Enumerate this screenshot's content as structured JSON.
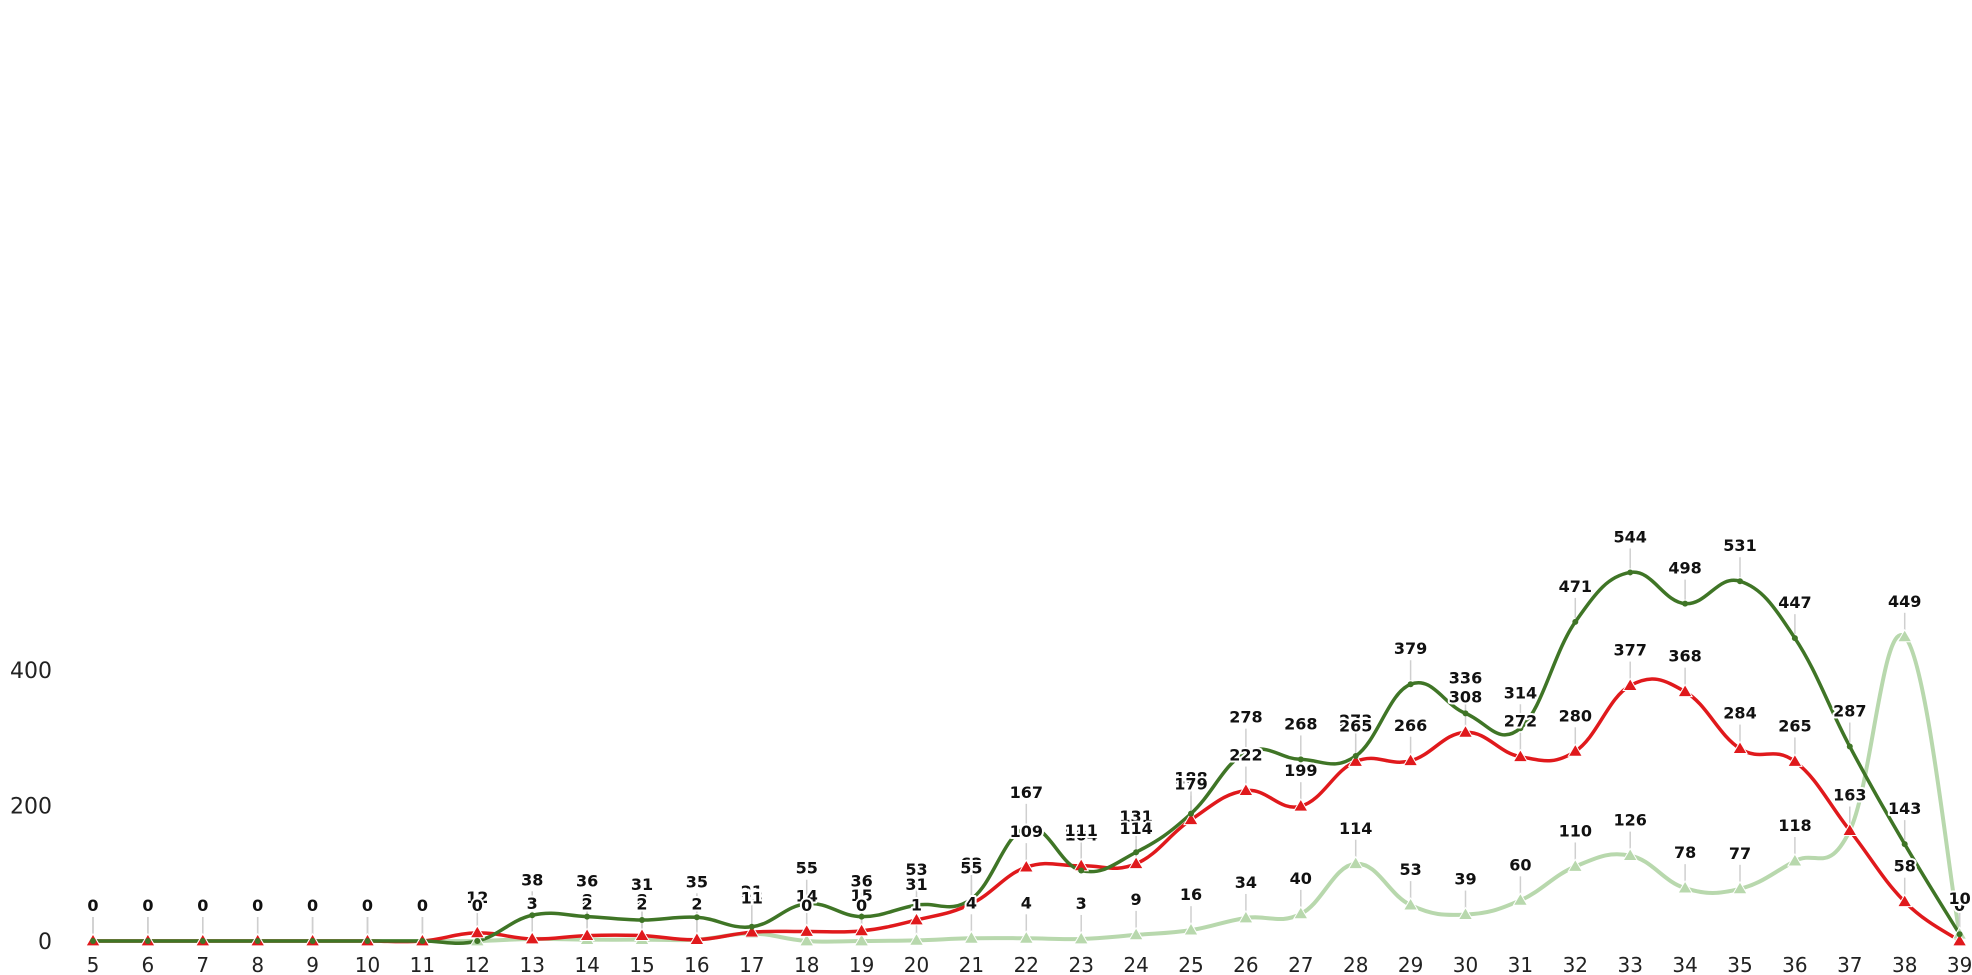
{
  "chart_data": {
    "type": "line",
    "smooth": true,
    "grid": false,
    "legend": "none",
    "categories": [
      "5",
      "6",
      "7",
      "8",
      "9",
      "10",
      "11",
      "12",
      "13",
      "14",
      "15",
      "16",
      "17",
      "18",
      "19",
      "20",
      "21",
      "22",
      "23",
      "24",
      "25",
      "26",
      "27",
      "28",
      "29",
      "30",
      "31",
      "32",
      "33",
      "34",
      "35",
      "36",
      "37",
      "38",
      "39"
    ],
    "ylim": [
      0,
      560
    ],
    "yticks": [
      0,
      200,
      400
    ],
    "series": [
      {
        "color": "#3f7526",
        "marker": "circle",
        "values": [
          0,
          0,
          0,
          0,
          0,
          0,
          0,
          0,
          38,
          36,
          31,
          35,
          21,
          55,
          36,
          53,
          62,
          167,
          104,
          131,
          188,
          278,
          268,
          273,
          379,
          336,
          314,
          471,
          544,
          498,
          531,
          447,
          287,
          143,
          10
        ]
      },
      {
        "color": "#e0191c",
        "marker": "triangle",
        "values": [
          0,
          0,
          0,
          0,
          0,
          0,
          0,
          12,
          3,
          8,
          8,
          2,
          13,
          14,
          15,
          31,
          55,
          109,
          111,
          114,
          179,
          222,
          199,
          265,
          266,
          308,
          272,
          280,
          377,
          368,
          284,
          265,
          163,
          58,
          0
        ]
      },
      {
        "color": "#b8d8ad",
        "marker": "triangle",
        "values": [
          0,
          0,
          0,
          0,
          0,
          0,
          0,
          0,
          3,
          2,
          2,
          2,
          11,
          0,
          0,
          1,
          4,
          4,
          3,
          9,
          16,
          34,
          40,
          114,
          53,
          39,
          60,
          110,
          126,
          78,
          77,
          118,
          163,
          449,
          10
        ]
      }
    ]
  }
}
